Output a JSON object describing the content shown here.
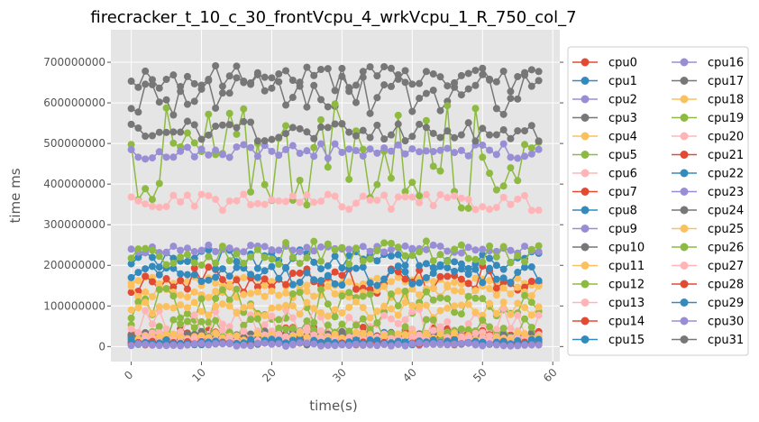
{
  "chart_data": {
    "type": "line",
    "title": "firecracker_t_10_c_30_frontVcpu_4_wrkVcpu_1_R_750_col_7",
    "xlabel": "time(s)",
    "ylabel": "time ms",
    "xlim": [
      -2.9,
      61
    ],
    "ylim": [
      -37000000,
      780000000
    ],
    "xticks": [
      0,
      10,
      20,
      30,
      40,
      50,
      60
    ],
    "yticks": [
      0,
      100000000,
      200000000,
      300000000,
      400000000,
      500000000,
      600000000,
      700000000
    ],
    "xtick_labels": [
      "0",
      "10",
      "20",
      "30",
      "40",
      "50",
      "60"
    ],
    "ytick_labels": [
      "0",
      "100000000",
      "200000000",
      "300000000",
      "400000000",
      "500000000",
      "600000000",
      "700000000"
    ],
    "grid": true,
    "legend_placement": "outside-right, two columns",
    "marker": "circle",
    "x_range": [
      0,
      58
    ],
    "series": [
      {
        "name": "cpu0",
        "color": "#E24A33",
        "base": 30000000,
        "amp": 18000000
      },
      {
        "name": "cpu1",
        "color": "#348ABD",
        "base": 22000000,
        "amp": 14000000
      },
      {
        "name": "cpu2",
        "color": "#988ED5",
        "base": 15000000,
        "amp": 9000000
      },
      {
        "name": "cpu3",
        "color": "#777777",
        "base": 620000000,
        "amp": 50000000
      },
      {
        "name": "cpu4",
        "color": "#FBC15E",
        "base": 160000000,
        "amp": 12000000
      },
      {
        "name": "cpu5",
        "color": "#8EBA42",
        "base": 470000000,
        "amp": 130000000
      },
      {
        "name": "cpu6",
        "color": "#FFB5B8",
        "base": 355000000,
        "amp": 20000000
      },
      {
        "name": "cpu7",
        "color": "#E24A33",
        "base": 165000000,
        "amp": 35000000
      },
      {
        "name": "cpu8",
        "color": "#348ABD",
        "base": 215000000,
        "amp": 25000000
      },
      {
        "name": "cpu9",
        "color": "#988ED5",
        "base": 240000000,
        "amp": 10000000
      },
      {
        "name": "cpu10",
        "color": "#777777",
        "base": 25000000,
        "amp": 8000000
      },
      {
        "name": "cpu11",
        "color": "#FBC15E",
        "base": 135000000,
        "amp": 15000000
      },
      {
        "name": "cpu12",
        "color": "#8EBA42",
        "base": 100000000,
        "amp": 45000000
      },
      {
        "name": "cpu13",
        "color": "#FFB5B8",
        "base": 60000000,
        "amp": 35000000
      },
      {
        "name": "cpu14",
        "color": "#E24A33",
        "base": 20000000,
        "amp": 10000000
      },
      {
        "name": "cpu15",
        "color": "#348ABD",
        "base": 10000000,
        "amp": 6000000
      },
      {
        "name": "cpu16",
        "color": "#988ED5",
        "base": 8000000,
        "amp": 5000000
      },
      {
        "name": "cpu17",
        "color": "#777777",
        "base": 30000000,
        "amp": 8000000
      },
      {
        "name": "cpu18",
        "color": "#FBC15E",
        "base": 90000000,
        "amp": 20000000
      },
      {
        "name": "cpu19",
        "color": "#8EBA42",
        "base": 40000000,
        "amp": 30000000
      },
      {
        "name": "cpu20",
        "color": "#FFB5B8",
        "base": 30000000,
        "amp": 15000000
      },
      {
        "name": "cpu21",
        "color": "#E24A33",
        "base": 12000000,
        "amp": 6000000
      },
      {
        "name": "cpu22",
        "color": "#348ABD",
        "base": 175000000,
        "amp": 25000000
      },
      {
        "name": "cpu23",
        "color": "#988ED5",
        "base": 480000000,
        "amp": 20000000
      },
      {
        "name": "cpu24",
        "color": "#777777",
        "base": 530000000,
        "amp": 25000000
      },
      {
        "name": "cpu25",
        "color": "#FBC15E",
        "base": 25000000,
        "amp": 10000000
      },
      {
        "name": "cpu26",
        "color": "#8EBA42",
        "base": 230000000,
        "amp": 30000000
      },
      {
        "name": "cpu27",
        "color": "#FFB5B8",
        "base": 15000000,
        "amp": 8000000
      },
      {
        "name": "cpu28",
        "color": "#E24A33",
        "base": 8000000,
        "amp": 5000000
      },
      {
        "name": "cpu29",
        "color": "#348ABD",
        "base": 12000000,
        "amp": 6000000
      },
      {
        "name": "cpu30",
        "color": "#988ED5",
        "base": 5000000,
        "amp": 4000000
      },
      {
        "name": "cpu31",
        "color": "#777777",
        "base": 660000000,
        "amp": 35000000
      }
    ]
  }
}
